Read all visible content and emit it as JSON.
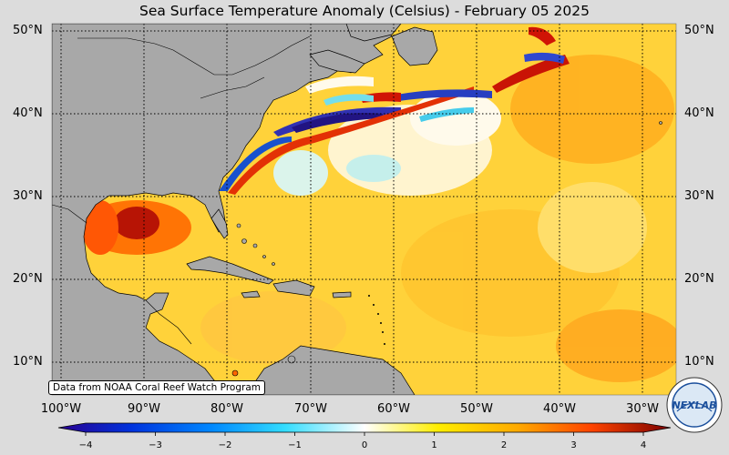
{
  "title": "Sea Surface Temperature Anomaly (Celsius) - February 05 2025",
  "credit": "Data from NOAA Coral Reef Watch Program",
  "logo_text": "NEXLAB",
  "lat_labels": [
    "50°N",
    "40°N",
    "30°N",
    "20°N",
    "10°N"
  ],
  "lon_labels": [
    "100°W",
    "90°W",
    "80°W",
    "70°W",
    "60°W",
    "50°W",
    "40°W",
    "30°W"
  ],
  "colorbar": {
    "ticks": [
      "−4",
      "−3",
      "−2",
      "−1",
      "0",
      "1",
      "2",
      "3",
      "4"
    ],
    "min": -4,
    "max": 4,
    "colors": [
      "#2a0090",
      "#0033dd",
      "#0088ff",
      "#33ddff",
      "#ffffff",
      "#ffee00",
      "#ffaa00",
      "#ff5500",
      "#cc0000",
      "#7a0000"
    ]
  },
  "colors": {
    "land": "#a8a8a8",
    "ocean_base": "#ffd23a"
  }
}
